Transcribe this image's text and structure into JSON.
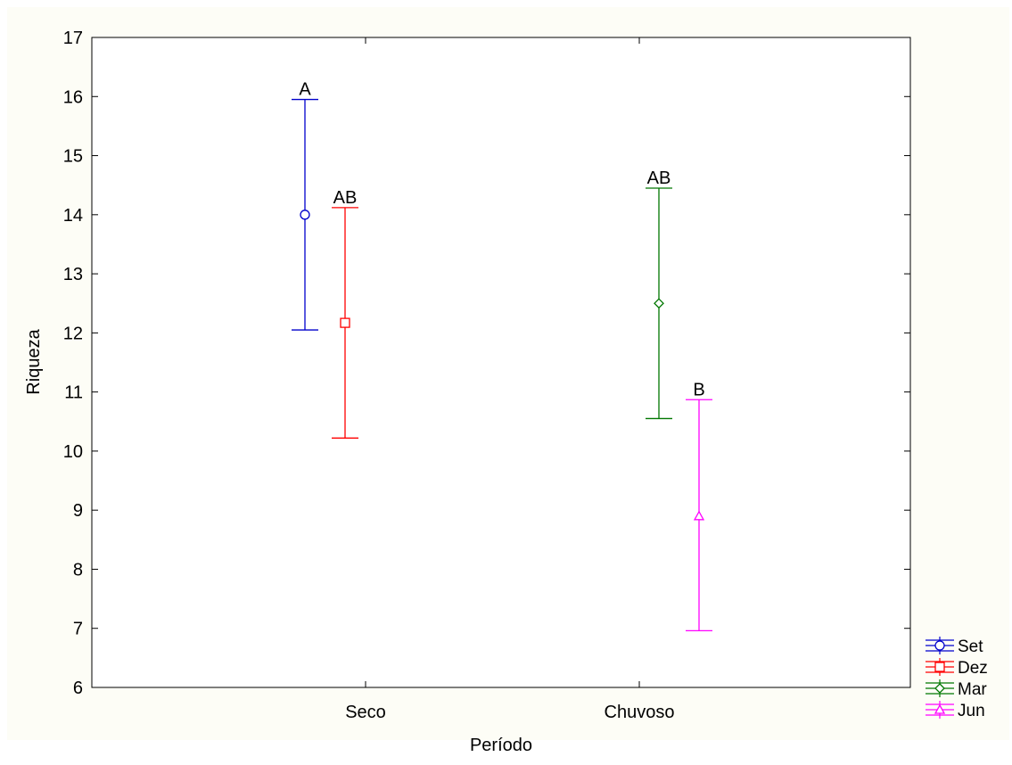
{
  "chart_data": {
    "type": "errorbar",
    "xlabel": "Período",
    "ylabel": "Riqueza",
    "categories": [
      "Seco",
      "Chuvoso"
    ],
    "ylim": [
      6,
      17
    ],
    "yticks": [
      6,
      7,
      8,
      9,
      10,
      11,
      12,
      13,
      14,
      15,
      16,
      17
    ],
    "grid": false,
    "legend_position": "bottom-right, outside plot",
    "series": [
      {
        "name": "Set",
        "category": "Seco",
        "mean": 14.0,
        "lower": 12.05,
        "upper": 15.95,
        "group_label": "A",
        "color": "#0000cc",
        "marker": "circle"
      },
      {
        "name": "Dez",
        "category": "Seco",
        "mean": 12.17,
        "lower": 10.22,
        "upper": 14.12,
        "group_label": "AB",
        "color": "#ff0000",
        "marker": "square"
      },
      {
        "name": "Mar",
        "category": "Chuvoso",
        "mean": 12.5,
        "lower": 10.55,
        "upper": 14.45,
        "group_label": "AB",
        "color": "#007700",
        "marker": "diamond"
      },
      {
        "name": "Jun",
        "category": "Chuvoso",
        "mean": 8.9,
        "lower": 6.96,
        "upper": 10.87,
        "group_label": "B",
        "color": "#ff00ff",
        "marker": "triangle"
      }
    ]
  }
}
